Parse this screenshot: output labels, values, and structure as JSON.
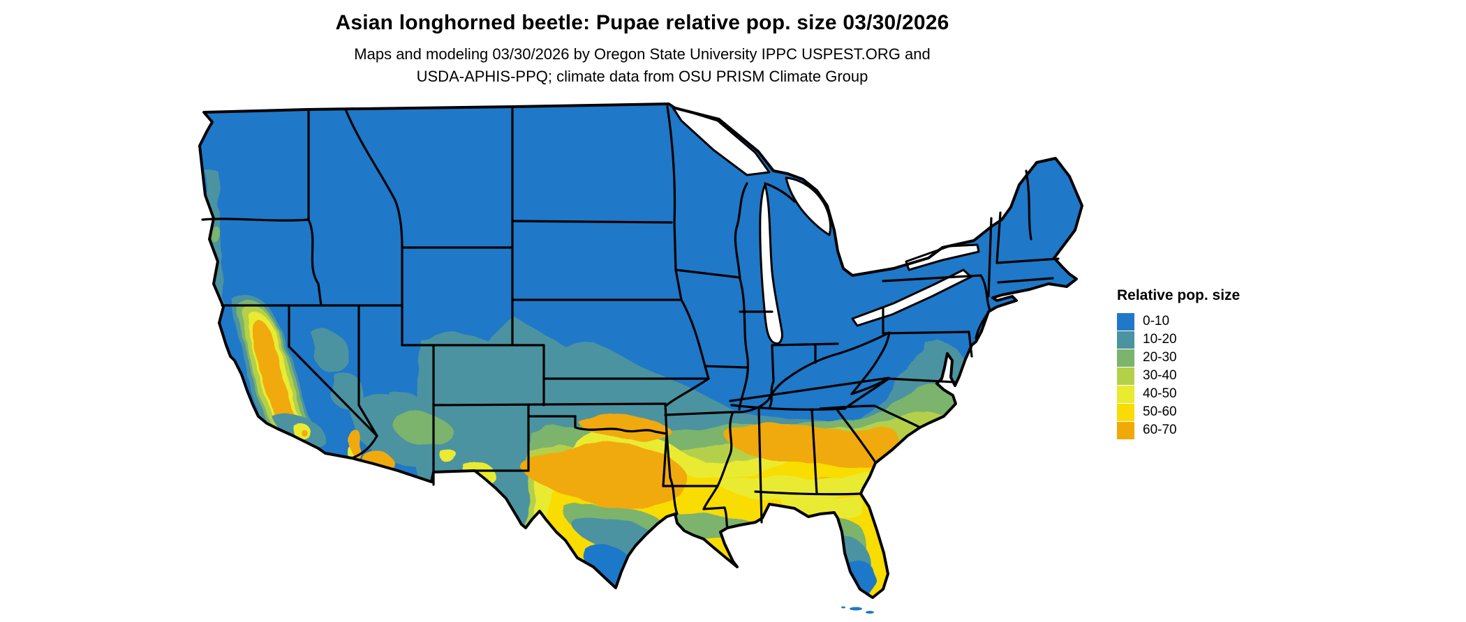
{
  "title": "Asian longhorned beetle: Pupae relative pop. size 03/30/2026",
  "subtitle": {
    "line1": "Maps and modeling 03/30/2026 by Oregon State University IPPC USPEST.ORG and",
    "line2": "USDA-APHIS-PPQ; climate data from OSU PRISM Climate Group"
  },
  "legend": {
    "title": "Relative pop. size",
    "items": [
      {
        "label": "0-10",
        "color": "#1f78c8"
      },
      {
        "label": "10-20",
        "color": "#4b93a0"
      },
      {
        "label": "20-30",
        "color": "#7cb36d"
      },
      {
        "label": "30-40",
        "color": "#b4d04b"
      },
      {
        "label": "40-50",
        "color": "#e9eb30"
      },
      {
        "label": "50-60",
        "color": "#f9dc06"
      },
      {
        "label": "60-70",
        "color": "#f0aa07"
      }
    ]
  },
  "map": {
    "region": "Contiguous United States",
    "type": "raster choropleth with state boundaries",
    "boundary_color": "#000000",
    "water_color": "#ffffff",
    "pattern_notes": [
      "Northern states and mountain West mostly 0-10 (blue)",
      "10-20 band across central plains, Missouri, Ohio river valley and Virginia",
      "20-40 bands through Oklahoma, Arkansas, Tennessee and the Carolinas",
      "40-70 maximum belt across central Texas and the Deep South into coastal South Carolina",
      "Values fall again toward the Gulf coast, south Texas and south Florida (back to 0-10)",
      "California Central Valley and parts of Arizona/New Mexico show 40-70 patches"
    ]
  }
}
